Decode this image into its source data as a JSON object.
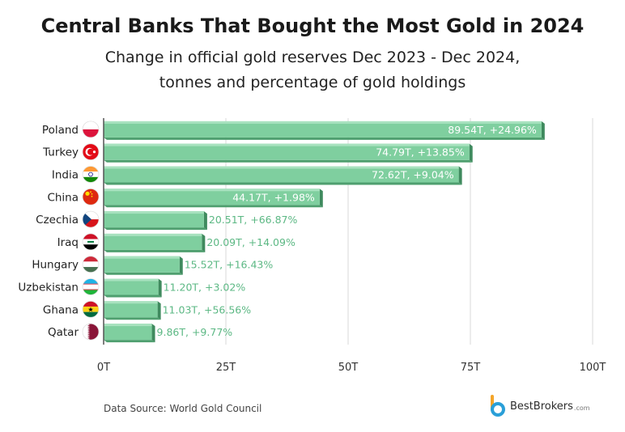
{
  "title": "Central Banks That Bought the Most Gold in 2024",
  "subtitle_line1": "Change in official gold reserves Dec 2023 - Dec 2024,",
  "subtitle_line2": "tonnes and percentage of gold holdings",
  "source": "Data Source: World Gold Council",
  "brand": {
    "name": "BestBrokers",
    "suffix": ".com"
  },
  "colors": {
    "bar": "#7fcf9f",
    "bar_dark": "#4f9f6f",
    "label_inside": "#ffffff",
    "label_outside": "#5cb884"
  },
  "chart_data": {
    "type": "bar",
    "orientation": "horizontal",
    "title": "Central Banks That Bought the Most Gold in 2024",
    "xlim": [
      0,
      100
    ],
    "ticks": [
      0,
      25,
      50,
      75,
      100
    ],
    "tick_labels": [
      "0T",
      "25T",
      "50T",
      "75T",
      "100T"
    ],
    "grid": "vertical",
    "categories": [
      "Poland",
      "Turkey",
      "India",
      "China",
      "Czechia",
      "Iraq",
      "Hungary",
      "Uzbekistan",
      "Ghana",
      "Qatar"
    ],
    "values": [
      89.54,
      74.79,
      72.62,
      44.17,
      20.51,
      20.09,
      15.52,
      11.2,
      11.03,
      9.86
    ],
    "labels": [
      "89.54T, +24.96%",
      "74.79T, +13.85%",
      "72.62T, +9.04%",
      "44.17T, +1.98%",
      "20.51T, +66.87%",
      "20.09T, +14.09%",
      "15.52T, +16.43%",
      "11.20T, +3.02%",
      "11.03T, +56.56%",
      "9.86T, +9.77%"
    ],
    "flags": [
      "poland",
      "turkey",
      "india",
      "china",
      "czechia",
      "iraq",
      "hungary",
      "uzbekistan",
      "ghana",
      "qatar"
    ]
  }
}
